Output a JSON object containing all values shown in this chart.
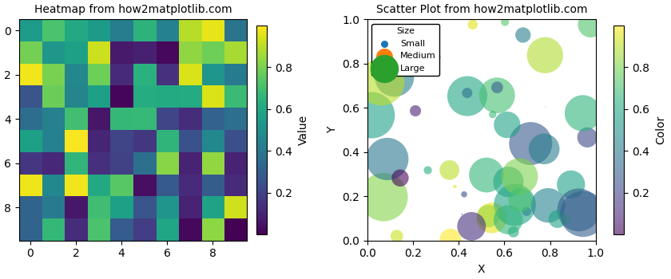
{
  "heatmap_seed": 0,
  "heatmap_shape": [
    10,
    10
  ],
  "heatmap_cmap": "viridis",
  "heatmap_title": "Heatmap from how2matplotlib.com",
  "heatmap_colorbar_label": "Value",
  "scatter_seed": 0,
  "scatter_n": 50,
  "scatter_title": "Scatter Plot from how2matplotlib.com",
  "scatter_xlabel": "X",
  "scatter_ylabel": "Y",
  "scatter_colorbar_label": "Color",
  "scatter_cmap": "viridis",
  "scatter_alpha": 0.6,
  "legend_title": "Size",
  "legend_labels": [
    "Small",
    "Medium",
    "Large"
  ],
  "legend_colors": [
    "#1f77b4",
    "#ff7f0e",
    "#2ca02c"
  ],
  "legend_sizes_display": [
    30,
    200,
    600
  ],
  "size_scale": 2000,
  "figsize": [
    8.4,
    3.5
  ],
  "dpi": 100
}
